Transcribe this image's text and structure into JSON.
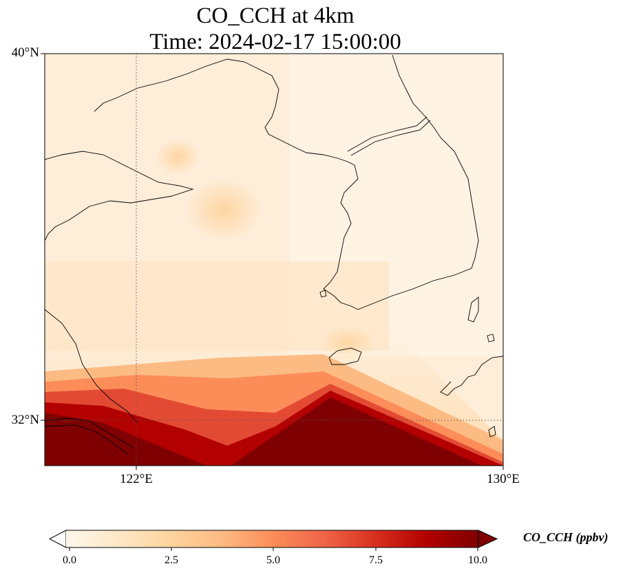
{
  "map": {
    "title_line1": "CO_CCH at 4km",
    "title_line2": "Time: 2024-02-17 15:00:00",
    "lat_labels": [
      "40°N",
      "32°N"
    ],
    "lon_labels": [
      "122°E",
      "130°E"
    ],
    "extent": {
      "lon_min": 120,
      "lon_max": 130,
      "lat_min": 31,
      "lat_max": 40
    },
    "gridlines": {
      "lon": [
        122
      ],
      "lat": [
        32
      ],
      "style": "dotted"
    }
  },
  "colorbar": {
    "label": "CO_CCH (ppbv)",
    "ticks": [
      "0.0",
      "2.5",
      "5.0",
      "7.5",
      "10.0"
    ],
    "min": 0,
    "max": 10,
    "extend": "both",
    "colormap": "OrRd",
    "colors": [
      "#fff7ec",
      "#fee8c8",
      "#fdd49e",
      "#fdbb84",
      "#fc8d59",
      "#ef6548",
      "#d7301f",
      "#b30000",
      "#7f0000"
    ]
  }
}
